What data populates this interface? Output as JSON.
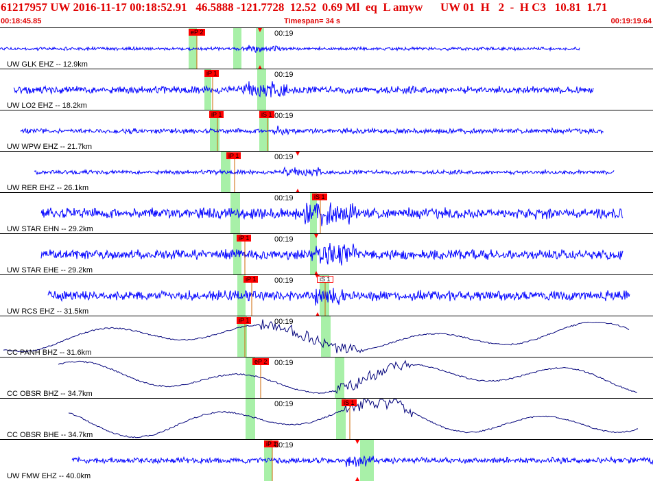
{
  "header": {
    "event_line": "61217957 UW 2016-11-17 00:18:52.91   46.5888 -121.7728  12.52  0.69 Ml  eq  L amyw      UW 01  H   2  -  H C3   10.81  1.71",
    "start_time": "00:18:45.85",
    "timespan": "Timespan=  34 s",
    "end_time": "00:19:19.64"
  },
  "colors": {
    "trace_short_period": "#0000ff",
    "trace_broadband": "#00007a",
    "pick_flag": "#ff0000",
    "pick_band": "#a8f0a8",
    "header_text": "#e00000"
  },
  "tick_label": "00:19",
  "traces": [
    {
      "station": "UW GLK EHZ -- 12.9km",
      "picks": [
        {
          "label": "eP 2",
          "style": "filled"
        }
      ],
      "type": "short-period"
    },
    {
      "station": "UW LO2 EHZ -- 18.2km",
      "picks": [
        {
          "label": "iP 1",
          "style": "filled"
        }
      ],
      "type": "short-period"
    },
    {
      "station": "UW WPW EHZ -- 21.7km",
      "picks": [
        {
          "label": "iP 1",
          "style": "filled"
        },
        {
          "label": "iS 1",
          "style": "filled"
        }
      ],
      "type": "short-period"
    },
    {
      "station": "UW RER EHZ -- 26.1km",
      "picks": [
        {
          "label": "iP 1",
          "style": "filled"
        }
      ],
      "type": "short-period"
    },
    {
      "station": "UW STAR EHN -- 29.2km",
      "picks": [
        {
          "label": "iS 1",
          "style": "filled"
        }
      ],
      "type": "short-period"
    },
    {
      "station": "UW STAR EHE -- 29.2km",
      "picks": [
        {
          "label": "iP 1",
          "style": "filled"
        }
      ],
      "type": "short-period"
    },
    {
      "station": "UW RCS EHZ -- 31.5km",
      "picks": [
        {
          "label": "iP 1",
          "style": "filled"
        },
        {
          "label": "iS 1",
          "style": "open"
        }
      ],
      "type": "short-period"
    },
    {
      "station": "CC PANH BHZ -- 31.6km",
      "picks": [
        {
          "label": "iP 1",
          "style": "filled"
        }
      ],
      "type": "broadband"
    },
    {
      "station": "CC OBSR BHZ -- 34.7km",
      "picks": [
        {
          "label": "eP 2",
          "style": "filled"
        }
      ],
      "type": "broadband"
    },
    {
      "station": "CC OBSR BHE -- 34.7km",
      "picks": [
        {
          "label": "iS 1",
          "style": "filled"
        }
      ],
      "type": "broadband"
    },
    {
      "station": "UW FMW EHZ -- 40.0km",
      "picks": [
        {
          "label": "iP 1",
          "style": "filled"
        }
      ],
      "type": "short-period"
    }
  ]
}
